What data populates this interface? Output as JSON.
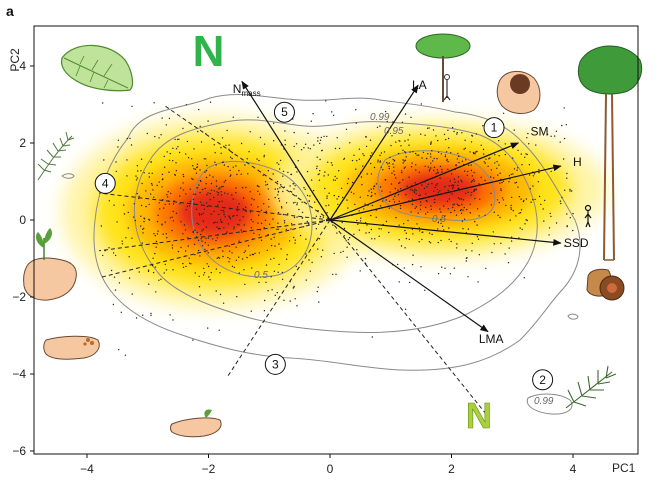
{
  "panel_label": "a",
  "chart_data": {
    "type": "scatter",
    "xlabel": "PC1",
    "ylabel": "PC2",
    "xlim": [
      -5.0,
      5.0
    ],
    "ylim": [
      -6.0,
      5.0
    ],
    "x_ticks": [
      -4,
      -2,
      0,
      2,
      4
    ],
    "y_ticks": [
      4,
      2,
      0,
      -2,
      -4,
      -6
    ],
    "grid": false,
    "density": {
      "colormap": [
        "#fff3a0",
        "#ffe000",
        "#ffb000",
        "#ff6a00",
        "#e0201a"
      ],
      "modes": [
        {
          "x": -1.9,
          "y": 0.2,
          "sx": 1.1,
          "sy": 1.1
        },
        {
          "x": 1.8,
          "y": 0.8,
          "sx": 1.2,
          "sy": 0.8
        }
      ]
    },
    "contour_labels": [
      {
        "text": "0.99",
        "x": 1.6,
        "y": 2.6
      },
      {
        "text": "0.95",
        "x": 2.3,
        "y": 2.2
      },
      {
        "text": "0.5",
        "x": 3.7,
        "y": 0.0
      },
      {
        "text": "0.5",
        "x": -1.2,
        "y": -1.5
      },
      {
        "text": "0.99",
        "x": 7.2,
        "y": -4.7
      }
    ],
    "vectors": [
      {
        "label": "N",
        "label_sub": "mass",
        "x": -1.45,
        "y": 3.6,
        "lx": -1.6,
        "ly": 3.3
      },
      {
        "label": "LA",
        "x": 1.45,
        "y": 3.5,
        "lx": 1.35,
        "ly": 3.4
      },
      {
        "label": "SM",
        "x": 3.1,
        "y": 2.0,
        "lx": 3.3,
        "ly": 2.2
      },
      {
        "label": "H",
        "x": 3.8,
        "y": 1.4,
        "lx": 4.0,
        "ly": 1.4
      },
      {
        "label": "SSD",
        "x": 3.8,
        "y": -0.6,
        "lx": 3.85,
        "ly": -0.7
      },
      {
        "label": "LMA",
        "x": 2.6,
        "y": -2.9,
        "lx": 2.45,
        "ly": -3.2
      }
    ],
    "dashed_rays": [
      {
        "x": -2.75,
        "y": 3.0
      },
      {
        "x": -3.8,
        "y": 0.7
      },
      {
        "x": -3.8,
        "y": -0.8
      },
      {
        "x": -3.8,
        "y": -1.5
      },
      {
        "x": -1.7,
        "y": -4.1
      },
      {
        "x": 2.6,
        "y": -5.1
      }
    ],
    "numbered_markers": [
      {
        "label": "5",
        "x": -0.75,
        "y": 2.8
      },
      {
        "label": "1",
        "x": 2.7,
        "y": 2.4
      },
      {
        "label": "4",
        "x": -3.7,
        "y": 0.95
      },
      {
        "label": "3",
        "x": -0.9,
        "y": -3.75
      },
      {
        "label": "2",
        "x": 3.5,
        "y": -4.15
      }
    ],
    "annotation_letters": [
      {
        "text": "N",
        "color": "#2fb34a",
        "x": -2.0,
        "y": 4.0
      },
      {
        "text": "N",
        "color": "#a8d13c",
        "x": 2.45,
        "y": -5.4
      }
    ]
  }
}
